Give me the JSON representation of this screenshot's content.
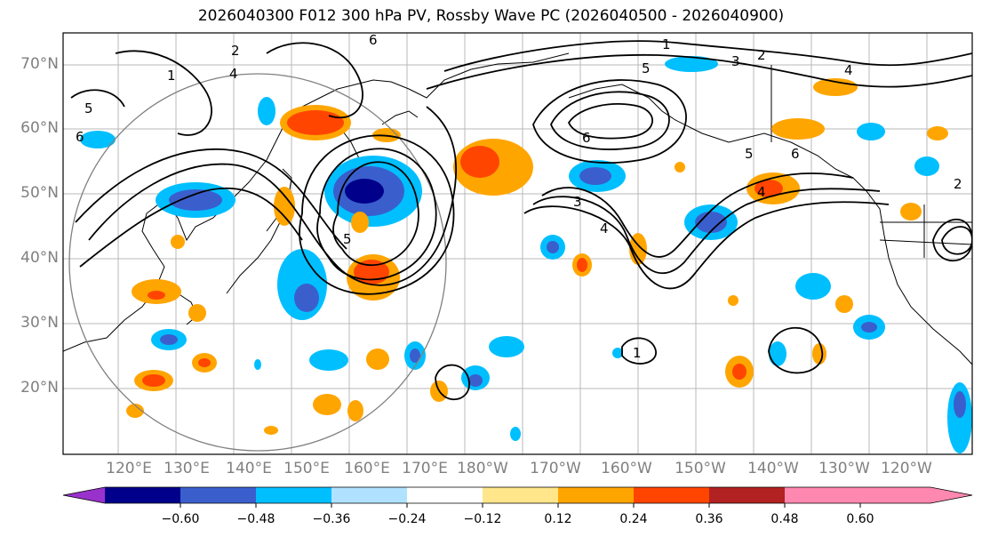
{
  "title": "2026040300 F012 300 hPa PV, Rossby Wave PC (2026040500 - 2026040900)",
  "lat_labels": [
    "70°N",
    "60°N",
    "50°N",
    "40°N",
    "30°N",
    "20°N"
  ],
  "lon_labels": [
    "120°E",
    "130°E",
    "140°E",
    "150°E",
    "160°E",
    "170°E",
    "180°W",
    "170°W",
    "160°W",
    "150°W",
    "140°W",
    "130°W",
    "120°W"
  ],
  "colorbar": {
    "colors": [
      "#9932cc",
      "#00008b",
      "#3a5fcd",
      "#00bfff",
      "#b0e2ff",
      "#ffffff",
      "#ffe68a",
      "#ffa500",
      "#ff4500",
      "#b22222",
      "#ff88b0"
    ],
    "ticks": [
      "−0.60",
      "−0.48",
      "−0.36",
      "−0.24",
      "−0.12",
      "0.12",
      "0.24",
      "0.36",
      "0.48",
      "0.60"
    ]
  },
  "contour_labels": {
    "c1": "1",
    "c2": "2",
    "c3": "3",
    "c4": "4",
    "c5": "5",
    "c6": "6",
    "c7": "4",
    "c8": "5",
    "c9": "6",
    "c10": "1",
    "c11": "2",
    "c12": "3",
    "c13": "4",
    "c14": "5",
    "c15": "6",
    "c16": "1",
    "c17": "4",
    "c18": "5",
    "c19": "6",
    "c20": "2"
  }
}
